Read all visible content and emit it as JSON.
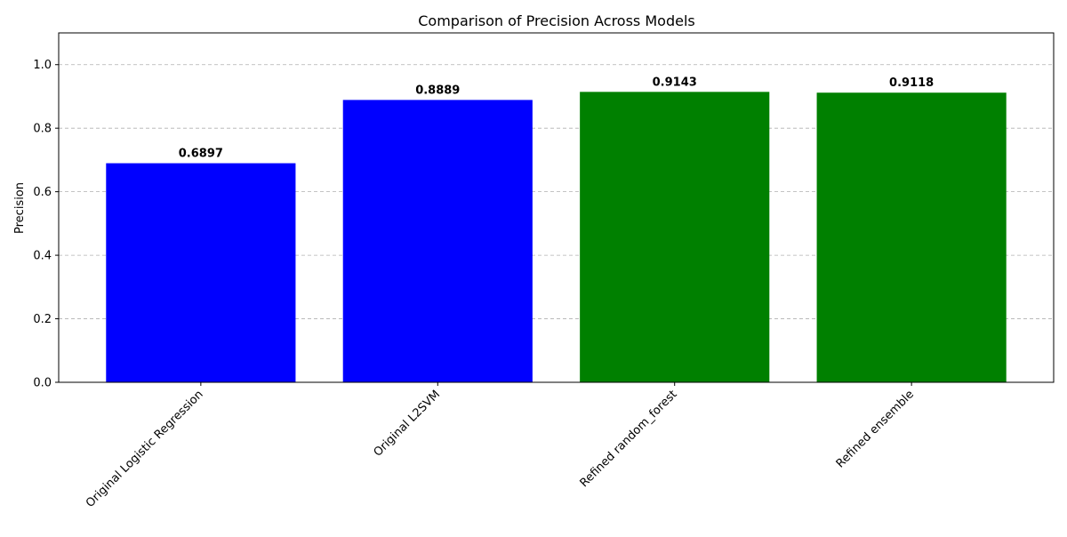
{
  "chart_data": {
    "type": "bar",
    "title": "Comparison of Precision Across Models",
    "xlabel": "",
    "ylabel": "Precision",
    "categories": [
      "Original Logistic Regression",
      "Original L2SVM",
      "Refined random_forest",
      "Refined ensemble"
    ],
    "values": [
      0.6897,
      0.8889,
      0.9143,
      0.9118
    ],
    "value_labels": [
      "0.6897",
      "0.8889",
      "0.9143",
      "0.9118"
    ],
    "bar_colors": [
      "#0000ff",
      "#0000ff",
      "#008000",
      "#008000"
    ],
    "ylim": [
      0,
      1.1
    ],
    "yticks": [
      0.0,
      0.2,
      0.4,
      0.6,
      0.8,
      1.0
    ],
    "ytick_labels": [
      "0.0",
      "0.2",
      "0.4",
      "0.6",
      "0.8",
      "1.0"
    ],
    "grid": "y-dashed",
    "grid_color": "#b0b0b0",
    "legend": "none"
  }
}
